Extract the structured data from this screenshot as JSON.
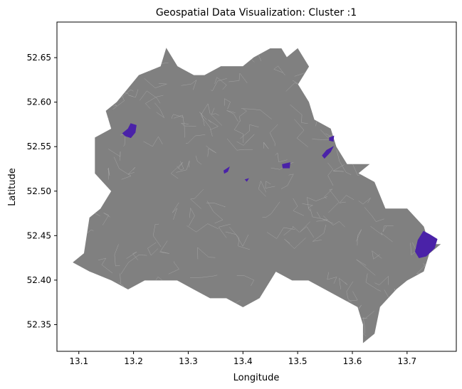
{
  "chart_data": {
    "type": "map",
    "title": "Geospatial Data Visualization: Cluster :1",
    "xlabel": "Longitude",
    "ylabel": "Latitude",
    "xlim": [
      13.06,
      13.79
    ],
    "ylim": [
      52.32,
      52.69
    ],
    "x_ticks": [
      13.1,
      13.2,
      13.3,
      13.4,
      13.5,
      13.6,
      13.7
    ],
    "y_ticks": [
      52.35,
      52.4,
      52.45,
      52.5,
      52.55,
      52.6,
      52.65
    ],
    "grid": false,
    "legend": false,
    "colors": {
      "base_regions": "#808080",
      "region_borders": "#a8a8a8",
      "highlighted_cluster": "#4a22a8"
    },
    "base_outline": [
      [
        13.09,
        52.42
      ],
      [
        13.11,
        52.43
      ],
      [
        13.12,
        52.47
      ],
      [
        13.14,
        52.48
      ],
      [
        13.16,
        52.5
      ],
      [
        13.13,
        52.52
      ],
      [
        13.13,
        52.56
      ],
      [
        13.16,
        52.57
      ],
      [
        13.15,
        52.59
      ],
      [
        13.17,
        52.6
      ],
      [
        13.21,
        52.63
      ],
      [
        13.25,
        52.64
      ],
      [
        13.26,
        52.66
      ],
      [
        13.28,
        52.64
      ],
      [
        13.31,
        52.63
      ],
      [
        13.33,
        52.63
      ],
      [
        13.36,
        52.64
      ],
      [
        13.38,
        52.64
      ],
      [
        13.4,
        52.64
      ],
      [
        13.42,
        52.65
      ],
      [
        13.45,
        52.66
      ],
      [
        13.47,
        52.66
      ],
      [
        13.48,
        52.65
      ],
      [
        13.5,
        52.66
      ],
      [
        13.52,
        52.64
      ],
      [
        13.5,
        52.62
      ],
      [
        13.52,
        52.6
      ],
      [
        13.53,
        52.58
      ],
      [
        13.56,
        52.57
      ],
      [
        13.57,
        52.55
      ],
      [
        13.59,
        52.53
      ],
      [
        13.63,
        52.53
      ],
      [
        13.61,
        52.52
      ],
      [
        13.64,
        52.51
      ],
      [
        13.66,
        52.48
      ],
      [
        13.7,
        52.48
      ],
      [
        13.73,
        52.46
      ],
      [
        13.74,
        52.44
      ],
      [
        13.76,
        52.44
      ],
      [
        13.74,
        52.43
      ],
      [
        13.73,
        52.41
      ],
      [
        13.7,
        52.4
      ],
      [
        13.68,
        52.39
      ],
      [
        13.65,
        52.37
      ],
      [
        13.64,
        52.34
      ],
      [
        13.62,
        52.33
      ],
      [
        13.62,
        52.35
      ],
      [
        13.61,
        52.37
      ],
      [
        13.58,
        52.38
      ],
      [
        13.55,
        52.39
      ],
      [
        13.52,
        52.4
      ],
      [
        13.49,
        52.4
      ],
      [
        13.46,
        52.41
      ],
      [
        13.43,
        52.38
      ],
      [
        13.4,
        52.37
      ],
      [
        13.37,
        52.38
      ],
      [
        13.34,
        52.38
      ],
      [
        13.31,
        52.39
      ],
      [
        13.28,
        52.4
      ],
      [
        13.25,
        52.4
      ],
      [
        13.22,
        52.4
      ],
      [
        13.19,
        52.39
      ],
      [
        13.16,
        52.4
      ],
      [
        13.12,
        52.41
      ]
    ],
    "highlighted_regions": [
      {
        "points": [
          [
            13.18,
            52.565
          ],
          [
            13.19,
            52.57
          ],
          [
            13.195,
            52.576
          ],
          [
            13.205,
            52.574
          ],
          [
            13.203,
            52.566
          ],
          [
            13.195,
            52.56
          ],
          [
            13.185,
            52.562
          ]
        ]
      },
      {
        "points": [
          [
            13.365,
            52.523
          ],
          [
            13.375,
            52.527
          ],
          [
            13.372,
            52.522
          ],
          [
            13.366,
            52.52
          ]
        ]
      },
      {
        "points": [
          [
            13.404,
            52.513
          ],
          [
            13.41,
            52.514
          ],
          [
            13.407,
            52.511
          ]
        ]
      },
      {
        "points": [
          [
            13.472,
            52.53
          ],
          [
            13.486,
            52.532
          ],
          [
            13.485,
            52.526
          ],
          [
            13.473,
            52.526
          ]
        ]
      },
      {
        "points": [
          [
            13.558,
            52.56
          ],
          [
            13.566,
            52.562
          ],
          [
            13.565,
            52.556
          ],
          [
            13.558,
            52.557
          ]
        ]
      },
      {
        "points": [
          [
            13.545,
            52.54
          ],
          [
            13.553,
            52.546
          ],
          [
            13.565,
            52.55
          ],
          [
            13.56,
            52.544
          ],
          [
            13.549,
            52.537
          ]
        ]
      },
      {
        "points": [
          [
            13.72,
            52.445
          ],
          [
            13.73,
            52.455
          ],
          [
            13.742,
            52.451
          ],
          [
            13.755,
            52.446
          ],
          [
            13.75,
            52.436
          ],
          [
            13.735,
            52.427
          ],
          [
            13.722,
            52.425
          ],
          [
            13.715,
            52.432
          ]
        ]
      }
    ]
  }
}
